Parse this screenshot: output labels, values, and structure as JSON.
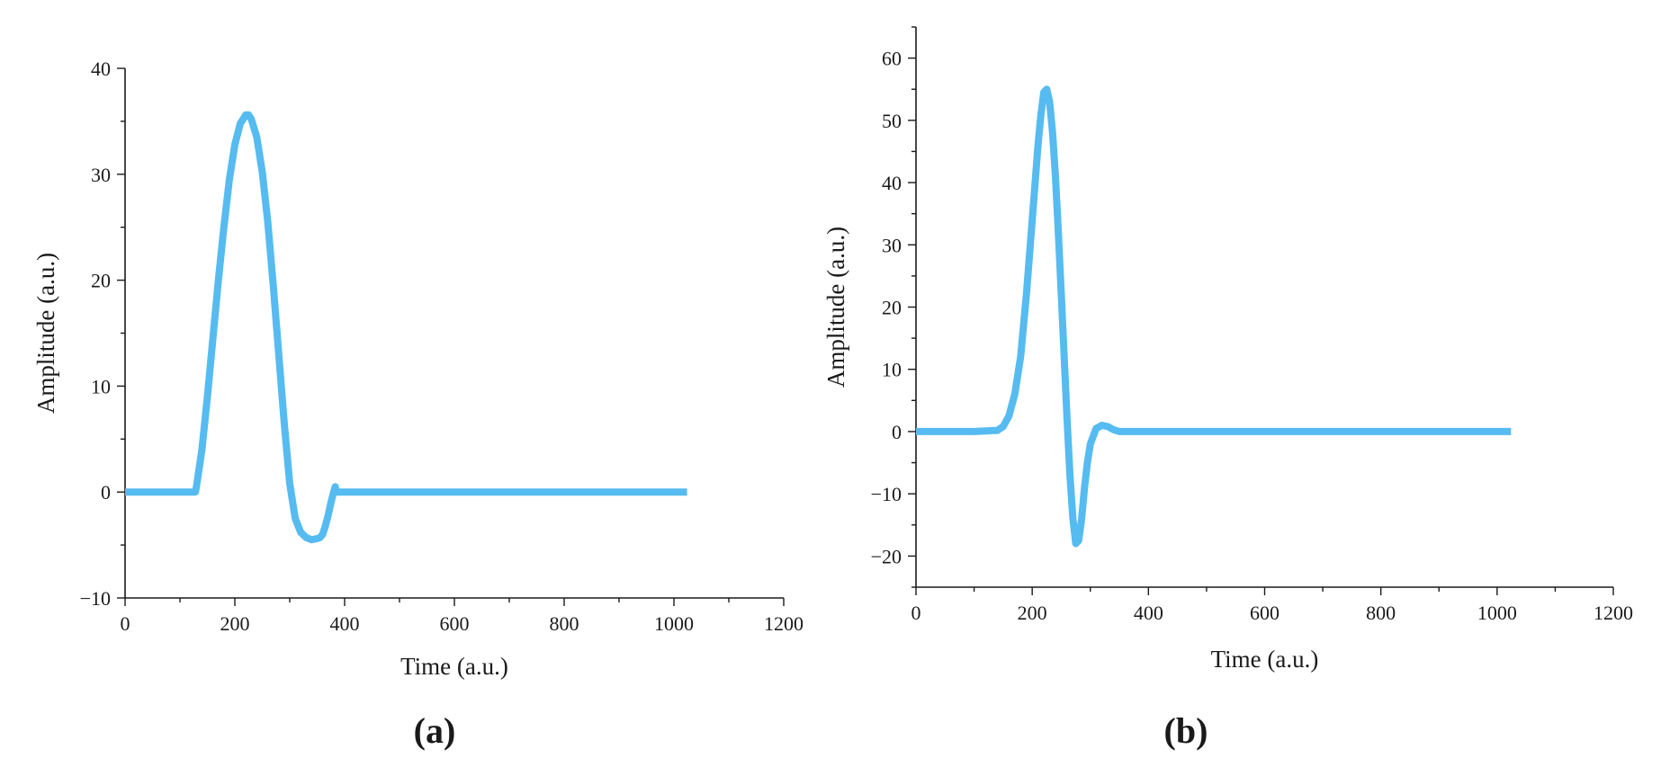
{
  "chart_data": [
    {
      "type": "line",
      "panel_label": "(a)",
      "xlabel": "Time (a.u.)",
      "ylabel": "Amplitude (a.u.)",
      "xlim": [
        0,
        1200
      ],
      "ylim": [
        -10,
        40
      ],
      "xticks": [
        0,
        200,
        400,
        600,
        800,
        1000,
        1200
      ],
      "xtick_labels": [
        "0",
        "200",
        "400",
        "600",
        "800",
        "1000",
        "1200"
      ],
      "yticks": [
        -10,
        0,
        10,
        20,
        30,
        40
      ],
      "ytick_labels": [
        "−10",
        "0",
        "10",
        "20",
        "30",
        "40"
      ],
      "grid": false,
      "series": [
        {
          "color": "#56BBF0",
          "x": [
            0,
            50,
            100,
            128,
            130,
            140,
            150,
            160,
            170,
            180,
            190,
            200,
            210,
            220,
            225,
            230,
            240,
            250,
            260,
            270,
            280,
            290,
            300,
            310,
            320,
            330,
            340,
            350,
            355,
            360,
            365,
            370,
            375,
            380,
            383,
            385,
            390,
            400,
            500,
            600,
            700,
            800,
            900,
            1000,
            1024
          ],
          "y": [
            0,
            0,
            0,
            0,
            0.5,
            4,
            9,
            14.5,
            20,
            25,
            29.5,
            32.8,
            34.8,
            35.6,
            35.6,
            35.2,
            33.5,
            30.2,
            25.5,
            19.5,
            13,
            6.5,
            0.8,
            -2.5,
            -3.8,
            -4.3,
            -4.5,
            -4.4,
            -4.3,
            -4,
            -3.2,
            -2.2,
            -1,
            0,
            0.5,
            0,
            0,
            0,
            0,
            0,
            0,
            0,
            0,
            0,
            0
          ]
        }
      ]
    },
    {
      "type": "line",
      "panel_label": "(b)",
      "xlabel": "Time (a.u.)",
      "ylabel": "Amplitude (a.u.)",
      "xlim": [
        0,
        1200
      ],
      "ylim": [
        -25,
        65
      ],
      "xticks": [
        0,
        200,
        400,
        600,
        800,
        1000,
        1200
      ],
      "xtick_labels": [
        "0",
        "200",
        "400",
        "600",
        "800",
        "1000",
        "1200"
      ],
      "yticks": [
        -20,
        -10,
        0,
        10,
        20,
        30,
        40,
        50,
        60
      ],
      "ytick_labels": [
        "−20",
        "−10",
        "0",
        "10",
        "20",
        "30",
        "40",
        "50",
        "60"
      ],
      "grid": false,
      "series": [
        {
          "color": "#56BBF0",
          "x": [
            0,
            50,
            100,
            140,
            150,
            160,
            170,
            180,
            190,
            200,
            210,
            215,
            220,
            225,
            230,
            235,
            240,
            245,
            250,
            255,
            260,
            265,
            270,
            275,
            280,
            285,
            290,
            295,
            300,
            310,
            320,
            330,
            340,
            350,
            360,
            380,
            400,
            500,
            600,
            700,
            800,
            900,
            1000,
            1024
          ],
          "y": [
            0,
            0,
            0,
            0.2,
            0.8,
            2.5,
            6,
            12,
            22,
            34,
            46,
            51,
            54.5,
            55,
            53,
            48,
            41,
            32,
            22,
            12,
            2,
            -7,
            -14,
            -18,
            -17.5,
            -14,
            -9,
            -5,
            -2,
            0.5,
            1,
            0.8,
            0.3,
            0,
            0,
            0,
            0,
            0,
            0,
            0,
            0,
            0,
            0,
            0
          ]
        }
      ]
    }
  ]
}
